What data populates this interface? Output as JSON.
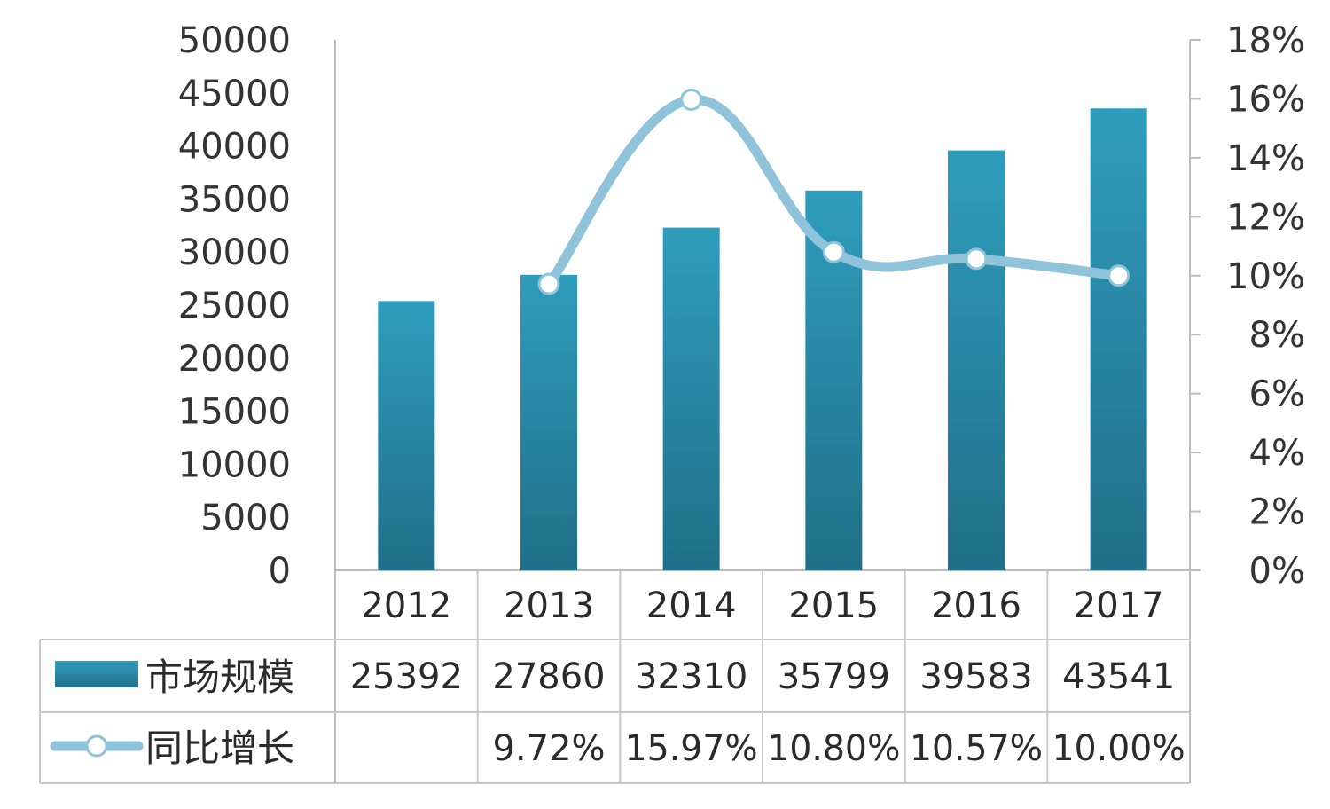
{
  "chart_data": {
    "type": "bar",
    "categories": [
      "2012",
      "2013",
      "2014",
      "2015",
      "2016",
      "2017"
    ],
    "series": [
      {
        "name": "市场规模",
        "type": "bar",
        "axis": "left",
        "values": [
          25392,
          27860,
          32310,
          35799,
          39583,
          43541
        ],
        "labels": [
          "25392",
          "27860",
          "32310",
          "35799",
          "39583",
          "43541"
        ],
        "color": "#2a8fae"
      },
      {
        "name": "同比增长",
        "type": "line",
        "axis": "right",
        "values": [
          null,
          9.72,
          15.97,
          10.8,
          10.57,
          10.0
        ],
        "labels": [
          "",
          "9.72%",
          "15.97%",
          "10.80%",
          "10.57%",
          "10.00%"
        ],
        "color": "#8ec3d9"
      }
    ],
    "y_left": {
      "range": [
        0,
        50000
      ],
      "ticks": [
        "0",
        "5000",
        "10000",
        "15000",
        "20000",
        "25000",
        "30000",
        "35000",
        "40000",
        "45000",
        "50000"
      ]
    },
    "y_right": {
      "range": [
        0,
        18
      ],
      "ticks": [
        "0%",
        "2%",
        "4%",
        "6%",
        "8%",
        "10%",
        "12%",
        "14%",
        "16%",
        "18%"
      ]
    },
    "data_table": true,
    "grid": false,
    "legend": "data-table-left"
  }
}
